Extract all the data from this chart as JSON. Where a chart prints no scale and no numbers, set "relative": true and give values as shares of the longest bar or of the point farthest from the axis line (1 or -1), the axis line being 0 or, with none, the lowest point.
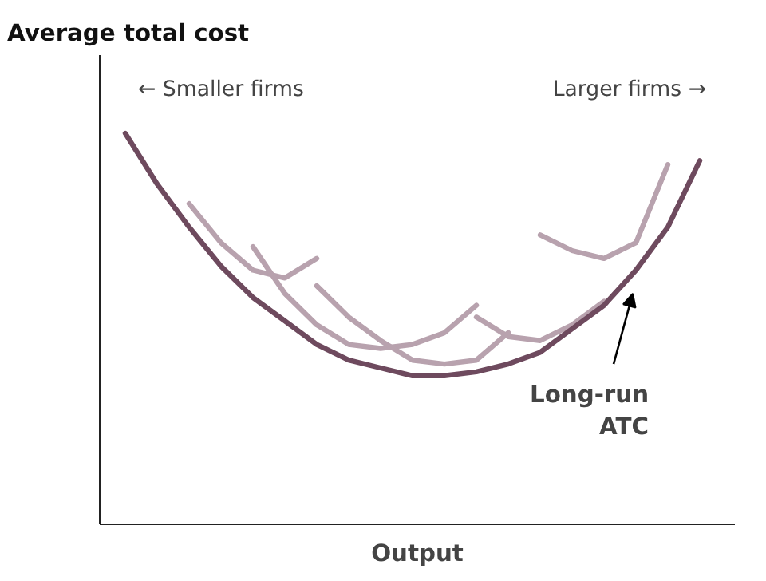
{
  "chart_data": {
    "type": "line",
    "relative": true,
    "xlabel": "Output",
    "ylabel": "Average total cost",
    "categories": [
      null,
      null,
      null,
      null,
      null,
      null,
      null,
      null,
      null,
      null,
      null,
      null,
      null,
      null,
      null,
      null,
      null,
      null,
      null
    ],
    "series": [
      {
        "color": "#6e4a5e",
        "values": [
          1.0,
          0.87,
          0.76,
          0.66,
          0.58,
          0.52,
          0.46,
          0.42,
          0.4,
          0.38,
          0.38,
          0.39,
          0.41,
          0.44,
          0.5,
          0.56,
          0.65,
          0.76,
          0.93
        ]
      },
      {
        "color": "#b8a2ae",
        "values": [
          null,
          null,
          0.82,
          0.72,
          0.65,
          0.63,
          0.68,
          null,
          null,
          null,
          null,
          null,
          null,
          null,
          null,
          null,
          null,
          null,
          null
        ]
      },
      {
        "color": "#b8a2ae",
        "values": [
          null,
          null,
          null,
          null,
          0.71,
          0.59,
          0.51,
          0.46,
          0.45,
          0.46,
          0.49,
          0.56,
          null,
          null,
          null,
          null,
          null,
          null,
          null
        ]
      },
      {
        "color": "#b8a2ae",
        "values": [
          null,
          null,
          null,
          null,
          null,
          null,
          0.61,
          0.53,
          0.47,
          0.42,
          0.41,
          0.42,
          0.49,
          null,
          null,
          null,
          null,
          null,
          null
        ]
      },
      {
        "color": "#b8a2ae",
        "values": [
          null,
          null,
          null,
          null,
          null,
          null,
          null,
          null,
          null,
          null,
          null,
          0.53,
          0.48,
          0.47,
          0.51,
          0.57,
          null,
          null,
          null
        ]
      },
      {
        "color": "#b8a2ae",
        "values": [
          null,
          null,
          null,
          null,
          null,
          null,
          null,
          null,
          null,
          null,
          null,
          null,
          null,
          0.74,
          0.7,
          0.68,
          0.72,
          0.92,
          null
        ]
      }
    ],
    "annotations": [
      "← Smaller firms",
      "Larger firms →",
      "Long-run ATC"
    ],
    "line_style": "solid",
    "marker": "none",
    "grid": false
  }
}
